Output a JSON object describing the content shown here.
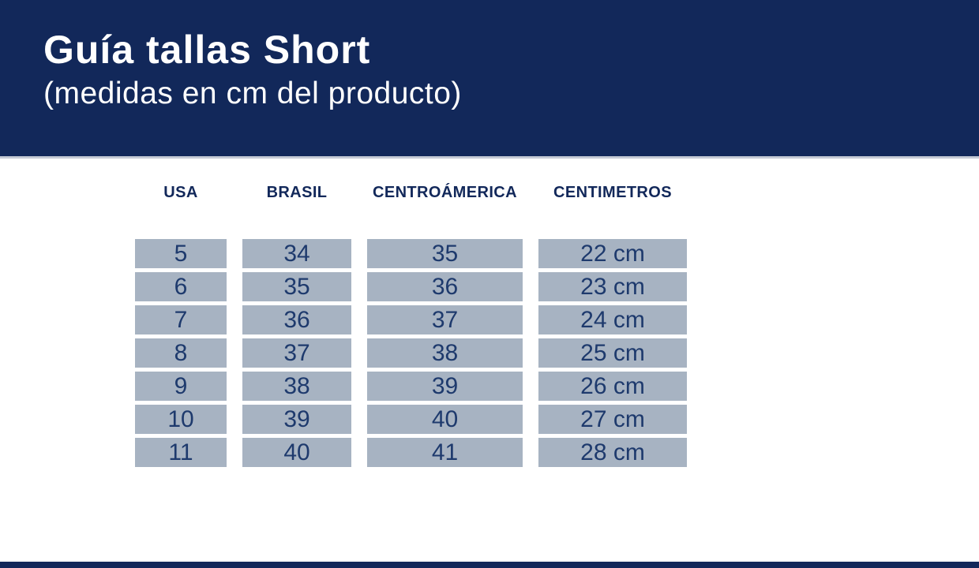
{
  "header": {
    "title": "Guía tallas Short",
    "subtitle": "(medidas en cm del producto)"
  },
  "table": {
    "columns": [
      "USA",
      "BRASIL",
      "CENTROÁMERICA",
      "CENTIMETROS"
    ],
    "rows": [
      [
        "5",
        "34",
        "35",
        "22 cm"
      ],
      [
        "6",
        "35",
        "36",
        "23 cm"
      ],
      [
        "7",
        "36",
        "37",
        "24 cm"
      ],
      [
        "8",
        "37",
        "38",
        "25 cm"
      ],
      [
        "9",
        "38",
        "39",
        "26 cm"
      ],
      [
        "10",
        "39",
        "40",
        "27 cm"
      ],
      [
        "11",
        "40",
        "41",
        "28 cm"
      ]
    ]
  },
  "chart_data": {
    "type": "table",
    "title": "Guía tallas Short",
    "subtitle": "(medidas en cm del producto)",
    "columns": [
      "USA",
      "BRASIL",
      "CENTROÁMERICA",
      "CENTIMETROS"
    ],
    "rows": [
      [
        "5",
        "34",
        "35",
        "22 cm"
      ],
      [
        "6",
        "35",
        "36",
        "23 cm"
      ],
      [
        "7",
        "36",
        "37",
        "24 cm"
      ],
      [
        "8",
        "37",
        "38",
        "25 cm"
      ],
      [
        "9",
        "38",
        "39",
        "26 cm"
      ],
      [
        "10",
        "39",
        "40",
        "27 cm"
      ],
      [
        "11",
        "40",
        "41",
        "28 cm"
      ]
    ]
  },
  "colors": {
    "navy": "#12285a",
    "cell_fill": "#a7b3c2",
    "cell_text": "#1e3a6d",
    "divider": "#c5cbd6"
  }
}
